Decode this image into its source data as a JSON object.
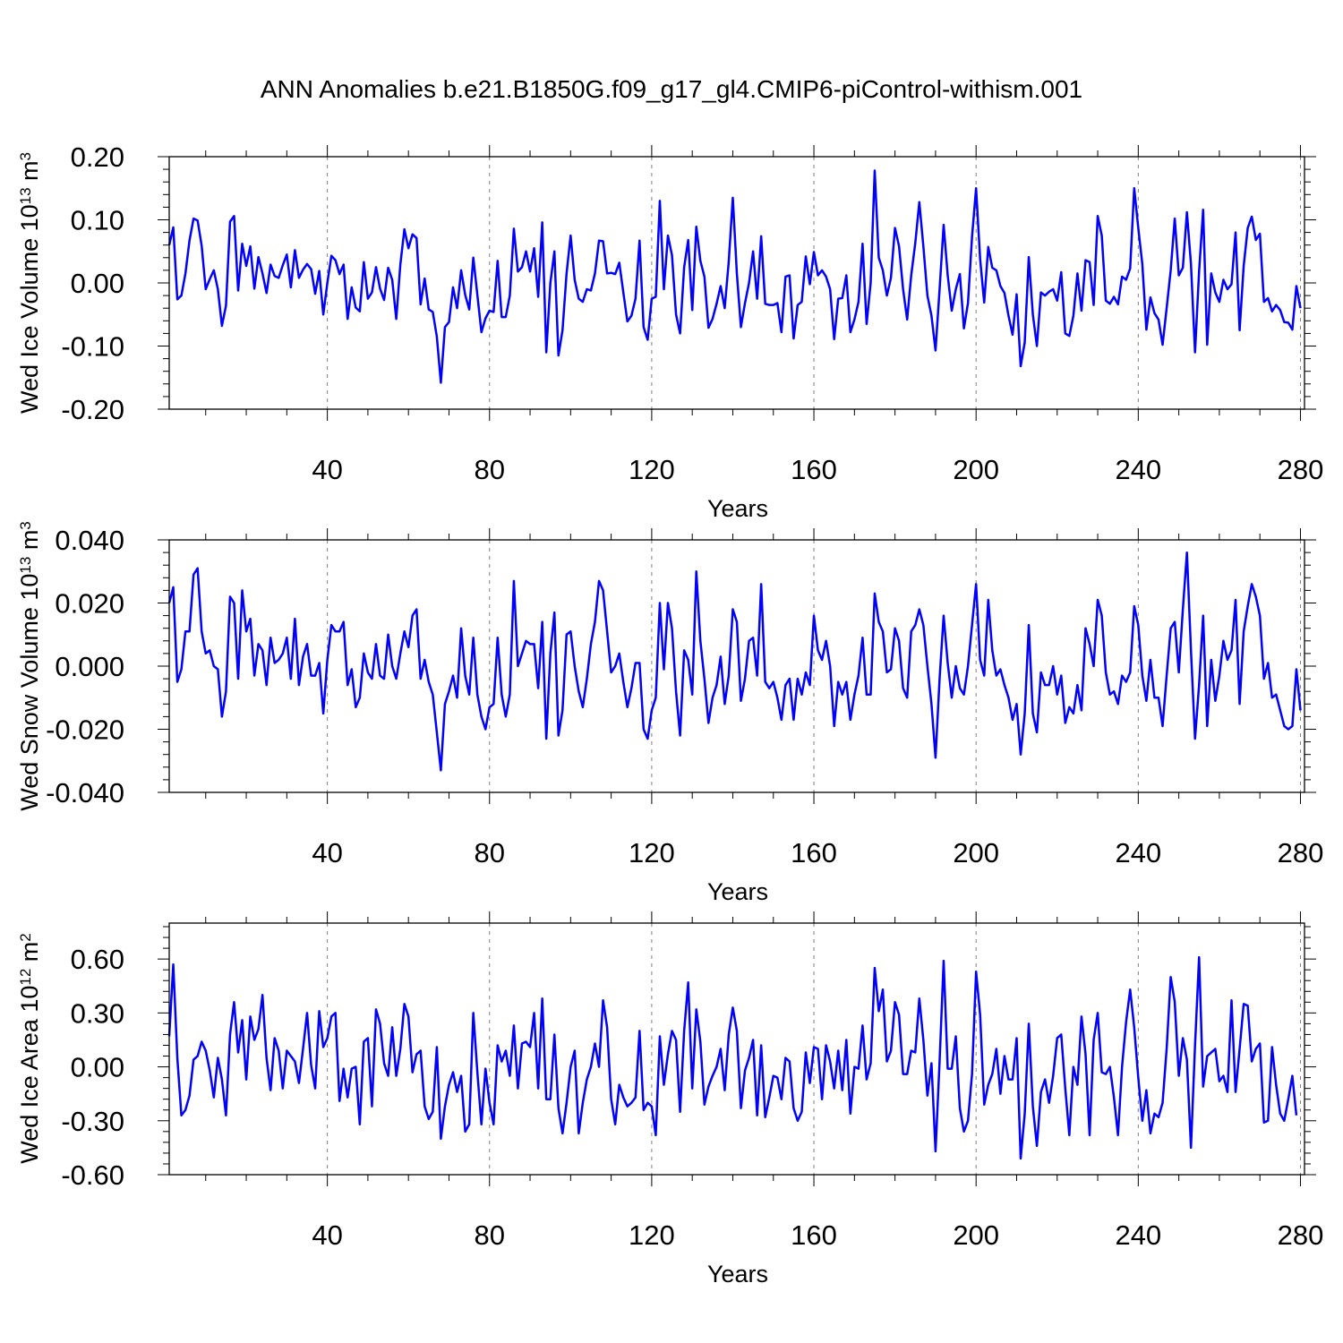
{
  "title": "ANN Anomalies b.e21.B1850G.f09_g17_gl4.CMIP6-piControl-withism.001",
  "colors": {
    "series": "#0000ff",
    "axis": "#000000",
    "grid": "#7f7f7f"
  },
  "chart_data": [
    {
      "type": "line",
      "ylabel": {
        "main": "Wed Ice Volume 10",
        "sup": "13",
        "mid": " m",
        "sup2": "3"
      },
      "xlabel": "Years",
      "xlim": [
        1,
        281
      ],
      "ylim": [
        -0.2,
        0.2
      ],
      "xticks": [
        40,
        80,
        120,
        160,
        200,
        240,
        280
      ],
      "xtick_labels": [
        "40",
        "80",
        "120",
        "160",
        "200",
        "240",
        "280"
      ],
      "yticks": [
        -0.2,
        -0.1,
        0.0,
        0.1,
        0.2
      ],
      "ytick_labels": [
        "-0.20",
        "-0.10",
        "0.00",
        "0.10",
        "0.20"
      ],
      "grid": "vertical dashed at 40-year intervals",
      "series": [
        {
          "values": [
            0.06,
            0.088,
            -0.026,
            -0.02,
            0.015,
            0.067,
            0.102,
            0.099,
            0.059,
            -0.01,
            0.006,
            0.02,
            -0.01,
            -0.068,
            -0.036,
            0.097,
            0.106,
            -0.012,
            0.062,
            0.027,
            0.058,
            -0.009,
            0.041,
            0.015,
            -0.016,
            0.029,
            0.011,
            0.008,
            0.028,
            0.045,
            -0.007,
            0.052,
            0.008,
            0.021,
            0.03,
            0.022,
            -0.017,
            0.019,
            -0.05,
            0.0,
            0.043,
            0.036,
            0.014,
            0.029,
            -0.057,
            -0.007,
            -0.039,
            -0.045,
            0.033,
            -0.025,
            -0.015,
            0.025,
            -0.009,
            -0.027,
            0.024,
            0.005,
            -0.057,
            0.029,
            0.085,
            0.055,
            0.077,
            0.071,
            -0.034,
            0.007,
            -0.042,
            -0.046,
            -0.085,
            -0.158,
            -0.07,
            -0.062,
            -0.007,
            -0.04,
            0.02,
            -0.019,
            -0.042,
            0.04,
            -0.019,
            -0.078,
            -0.056,
            -0.044,
            -0.046,
            0.035,
            -0.054,
            -0.054,
            -0.02,
            0.086,
            0.018,
            0.025,
            0.05,
            0.018,
            0.055,
            -0.022,
            0.096,
            -0.11,
            0.0,
            0.05,
            -0.115,
            -0.075,
            0.015,
            0.075,
            0.005,
            -0.025,
            -0.03,
            -0.01,
            -0.012,
            0.015,
            0.067,
            0.066,
            0.015,
            0.016,
            0.014,
            0.032,
            -0.015,
            -0.061,
            -0.052,
            -0.025,
            0.067,
            -0.07,
            -0.09,
            -0.025,
            -0.022,
            0.13,
            -0.01,
            0.075,
            0.044,
            -0.05,
            -0.08,
            0.025,
            0.068,
            -0.043,
            0.089,
            0.035,
            0.01,
            -0.071,
            -0.057,
            -0.033,
            -0.005,
            -0.04,
            0.034,
            0.135,
            0.015,
            -0.07,
            -0.032,
            0.0,
            0.05,
            -0.025,
            0.074,
            -0.033,
            -0.035,
            -0.035,
            -0.032,
            -0.078,
            0.01,
            0.012,
            -0.088,
            -0.035,
            -0.03,
            0.042,
            -0.002,
            0.049,
            0.012,
            0.02,
            0.01,
            -0.01,
            -0.089,
            -0.025,
            -0.024,
            0.012,
            -0.078,
            -0.058,
            -0.03,
            0.062,
            -0.065,
            0.0,
            0.178,
            0.04,
            0.02,
            -0.02,
            0.008,
            0.087,
            0.058,
            -0.01,
            -0.058,
            0.012,
            0.063,
            0.128,
            0.058,
            -0.02,
            -0.052,
            -0.107,
            -0.01,
            0.092,
            0.012,
            -0.044,
            -0.01,
            0.014,
            -0.072,
            -0.032,
            0.073,
            0.15,
            0.038,
            -0.031,
            0.057,
            0.024,
            0.02,
            -0.005,
            -0.016,
            -0.052,
            -0.082,
            -0.018,
            -0.132,
            -0.094,
            0.041,
            -0.05,
            -0.1,
            -0.015,
            -0.02,
            -0.014,
            -0.01,
            -0.028,
            0.017,
            -0.08,
            -0.084,
            -0.052,
            0.015,
            -0.044,
            0.036,
            0.033,
            -0.035,
            0.106,
            0.075,
            -0.028,
            -0.033,
            -0.022,
            -0.034,
            0.01,
            0.005,
            0.023,
            0.15,
            0.087,
            0.03,
            -0.074,
            -0.023,
            -0.048,
            -0.058,
            -0.098,
            -0.04,
            0.02,
            0.102,
            0.012,
            0.024,
            0.112,
            0.03,
            -0.11,
            0.018,
            0.116,
            -0.098,
            0.015,
            -0.015,
            -0.03,
            0.005,
            -0.01,
            -0.002,
            0.08,
            -0.075,
            0.027,
            0.087,
            0.105,
            0.068,
            0.078,
            -0.03,
            -0.024,
            -0.045,
            -0.035,
            -0.043,
            -0.062,
            -0.063,
            -0.074,
            -0.005,
            -0.04
          ]
        }
      ]
    },
    {
      "type": "line",
      "ylabel": {
        "main": "Wed Snow Volume 10",
        "sup": "13",
        "mid": " m",
        "sup2": "3"
      },
      "xlabel": "Years",
      "xlim": [
        1,
        281
      ],
      "ylim": [
        -0.04,
        0.04
      ],
      "xticks": [
        40,
        80,
        120,
        160,
        200,
        240,
        280
      ],
      "xtick_labels": [
        "40",
        "80",
        "120",
        "160",
        "200",
        "240",
        "280"
      ],
      "yticks": [
        -0.04,
        -0.02,
        0.0,
        0.02,
        0.04
      ],
      "ytick_labels": [
        "-0.040",
        "-0.020",
        "0.000",
        "0.020",
        "0.040"
      ],
      "grid": "vertical dashed at 40-year intervals",
      "series": [
        {
          "values": [
            0.02,
            0.025,
            -0.005,
            -0.001,
            0.011,
            0.011,
            0.029,
            0.031,
            0.011,
            0.004,
            0.005,
            0.0,
            -0.001,
            -0.016,
            -0.008,
            0.022,
            0.02,
            -0.004,
            0.024,
            0.011,
            0.015,
            -0.003,
            0.007,
            0.005,
            -0.006,
            0.009,
            0.001,
            0.002,
            0.004,
            0.009,
            -0.004,
            0.015,
            -0.006,
            0.003,
            0.007,
            -0.003,
            -0.003,
            0.001,
            -0.015,
            0.002,
            0.013,
            0.011,
            0.011,
            0.014,
            -0.006,
            -0.001,
            -0.013,
            -0.01,
            0.004,
            -0.002,
            -0.004,
            0.007,
            -0.003,
            -0.004,
            0.01,
            0.0,
            -0.004,
            0.004,
            0.011,
            0.006,
            0.016,
            0.018,
            -0.004,
            0.002,
            -0.005,
            -0.009,
            -0.021,
            -0.033,
            -0.012,
            -0.008,
            -0.003,
            -0.01,
            0.012,
            -0.003,
            -0.009,
            0.009,
            -0.009,
            -0.016,
            -0.02,
            -0.013,
            -0.012,
            0.009,
            -0.009,
            -0.016,
            -0.009,
            0.027,
            0.0,
            0.004,
            0.008,
            0.007,
            0.007,
            -0.007,
            0.014,
            -0.023,
            0.004,
            0.017,
            -0.022,
            -0.014,
            0.01,
            0.011,
            0.0,
            -0.008,
            -0.013,
            -0.004,
            0.007,
            0.014,
            0.027,
            0.024,
            0.011,
            -0.002,
            0.0,
            0.004,
            -0.005,
            -0.013,
            -0.007,
            0.001,
            0.001,
            -0.02,
            -0.023,
            -0.014,
            -0.01,
            0.02,
            -0.001,
            0.02,
            0.012,
            -0.008,
            -0.022,
            0.005,
            0.002,
            -0.009,
            0.03,
            0.008,
            -0.004,
            -0.018,
            -0.01,
            -0.006,
            0.003,
            -0.012,
            -0.003,
            0.018,
            0.014,
            -0.011,
            -0.004,
            0.008,
            0.009,
            -0.003,
            0.026,
            -0.005,
            -0.007,
            -0.005,
            -0.01,
            -0.017,
            -0.006,
            -0.004,
            -0.017,
            -0.004,
            -0.009,
            -0.002,
            -0.006,
            0.016,
            0.005,
            0.002,
            0.008,
            0.0,
            -0.019,
            -0.005,
            -0.009,
            -0.005,
            -0.017,
            -0.009,
            -0.003,
            0.009,
            -0.009,
            -0.009,
            0.023,
            0.014,
            0.011,
            -0.002,
            -0.001,
            0.012,
            0.008,
            -0.007,
            -0.01,
            0.011,
            0.013,
            0.018,
            0.013,
            0.0,
            -0.012,
            -0.029,
            -0.004,
            0.016,
            0.001,
            -0.01,
            0.0,
            -0.007,
            -0.009,
            0.0,
            0.013,
            0.026,
            0.002,
            -0.003,
            0.021,
            0.005,
            -0.003,
            -0.001,
            -0.006,
            -0.01,
            -0.017,
            -0.012,
            -0.028,
            -0.015,
            0.013,
            -0.015,
            -0.021,
            -0.002,
            -0.006,
            -0.006,
            0.0,
            -0.009,
            -0.003,
            -0.018,
            -0.013,
            -0.015,
            -0.006,
            -0.014,
            0.012,
            0.007,
            0.0,
            0.021,
            0.016,
            -0.002,
            -0.009,
            -0.008,
            -0.012,
            -0.003,
            -0.005,
            -0.002,
            0.019,
            0.013,
            -0.003,
            -0.011,
            0.002,
            -0.01,
            -0.01,
            -0.019,
            -0.003,
            0.012,
            0.014,
            -0.002,
            0.018,
            0.036,
            0.005,
            -0.023,
            -0.006,
            0.016,
            -0.019,
            0.002,
            -0.011,
            -0.003,
            0.008,
            0.002,
            0.005,
            0.021,
            -0.012,
            0.011,
            0.019,
            0.026,
            0.022,
            0.016,
            -0.004,
            0.001,
            -0.01,
            -0.009,
            -0.014,
            -0.019,
            -0.02,
            -0.019,
            -0.001,
            -0.014
          ]
        }
      ]
    },
    {
      "type": "line",
      "ylabel": {
        "main": "Wed Ice Area 10",
        "sup": "12",
        "mid": " m",
        "sup2": "2"
      },
      "xlabel": "Years",
      "xlim": [
        1,
        281
      ],
      "ylim": [
        -0.6,
        0.8
      ],
      "xticks": [
        40,
        80,
        120,
        160,
        200,
        240,
        280
      ],
      "xtick_labels": [
        "40",
        "80",
        "120",
        "160",
        "200",
        "240",
        "280"
      ],
      "yticks": [
        -0.6,
        -0.3,
        0.0,
        0.3,
        0.6
      ],
      "ytick_labels": [
        "-0.60",
        "-0.30",
        "0.00",
        "0.30",
        "0.60"
      ],
      "grid": "vertical dashed at 40-year intervals",
      "series": [
        {
          "values": [
            0.17,
            0.57,
            0.05,
            -0.27,
            -0.24,
            -0.16,
            0.04,
            0.06,
            0.14,
            0.09,
            -0.02,
            -0.17,
            0.05,
            -0.07,
            -0.27,
            0.18,
            0.36,
            0.08,
            0.26,
            -0.07,
            0.28,
            0.15,
            0.21,
            0.4,
            0.05,
            -0.13,
            0.16,
            0.09,
            -0.12,
            0.09,
            0.06,
            0.03,
            -0.09,
            0.1,
            0.3,
            0.01,
            -0.12,
            0.31,
            0.11,
            0.16,
            0.28,
            0.3,
            -0.19,
            -0.01,
            -0.17,
            -0.01,
            0.0,
            -0.32,
            0.14,
            0.16,
            -0.22,
            0.32,
            0.24,
            0.02,
            -0.05,
            0.22,
            -0.05,
            0.1,
            0.35,
            0.28,
            -0.03,
            0.07,
            0.09,
            -0.22,
            -0.29,
            -0.25,
            0.11,
            -0.4,
            -0.22,
            -0.1,
            -0.03,
            -0.14,
            -0.05,
            -0.36,
            -0.32,
            0.3,
            -0.03,
            -0.32,
            -0.01,
            -0.2,
            -0.32,
            0.12,
            0.03,
            0.09,
            -0.05,
            0.23,
            -0.12,
            0.13,
            0.14,
            0.11,
            0.3,
            -0.12,
            0.38,
            -0.18,
            -0.18,
            0.18,
            -0.23,
            -0.37,
            -0.2,
            0.0,
            0.09,
            -0.37,
            -0.2,
            -0.07,
            0.0,
            0.13,
            0.0,
            0.37,
            0.22,
            -0.18,
            -0.32,
            -0.1,
            -0.17,
            -0.22,
            -0.2,
            -0.17,
            0.2,
            -0.24,
            -0.2,
            -0.22,
            -0.38,
            0.17,
            -0.1,
            0.07,
            0.2,
            0.15,
            -0.25,
            0.2,
            0.47,
            -0.12,
            0.32,
            0.14,
            -0.21,
            -0.11,
            -0.05,
            0.0,
            0.1,
            -0.13,
            0.18,
            0.33,
            0.2,
            -0.23,
            -0.02,
            0.05,
            0.15,
            -0.27,
            0.12,
            -0.28,
            -0.17,
            -0.05,
            -0.06,
            -0.18,
            0.05,
            0.03,
            -0.23,
            -0.3,
            -0.25,
            0.08,
            -0.09,
            0.11,
            0.1,
            -0.18,
            0.12,
            0.03,
            -0.12,
            0.09,
            -0.13,
            0.15,
            -0.26,
            0.0,
            -0.01,
            0.23,
            -0.07,
            0.02,
            0.55,
            0.31,
            0.43,
            0.03,
            0.09,
            0.36,
            0.29,
            -0.04,
            -0.04,
            0.09,
            0.08,
            0.38,
            0.15,
            -0.16,
            0.02,
            -0.47,
            0.03,
            0.59,
            -0.01,
            -0.01,
            0.17,
            -0.23,
            -0.36,
            -0.3,
            -0.04,
            0.53,
            0.29,
            -0.21,
            -0.1,
            -0.04,
            0.1,
            -0.15,
            0.06,
            -0.07,
            -0.07,
            0.16,
            -0.51,
            -0.26,
            0.24,
            -0.22,
            -0.44,
            -0.14,
            -0.07,
            -0.2,
            -0.05,
            0.16,
            0.18,
            -0.12,
            -0.38,
            0.0,
            -0.1,
            0.28,
            0.07,
            -0.38,
            0.15,
            0.3,
            -0.03,
            -0.04,
            0.0,
            -0.17,
            -0.38,
            0.0,
            0.25,
            0.43,
            0.22,
            -0.06,
            -0.3,
            -0.13,
            -0.37,
            -0.26,
            -0.28,
            -0.2,
            0.1,
            0.5,
            0.36,
            -0.05,
            0.16,
            0.04,
            -0.45,
            0.12,
            0.61,
            -0.11,
            0.06,
            0.08,
            0.1,
            -0.08,
            -0.05,
            -0.14,
            0.37,
            -0.14,
            0.1,
            0.35,
            0.34,
            0.03,
            0.1,
            0.13,
            -0.31,
            -0.3,
            0.11,
            -0.1,
            -0.26,
            -0.3,
            -0.18,
            -0.05,
            -0.27
          ]
        }
      ]
    }
  ]
}
